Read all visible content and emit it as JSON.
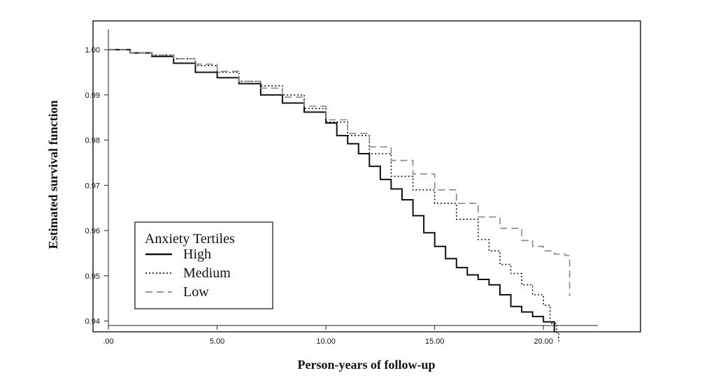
{
  "chart_data": {
    "type": "line",
    "xlabel": "Person-years of follow-up",
    "ylabel": "Estimated survival function",
    "xlim": [
      0,
      22.5
    ],
    "ylim": [
      0.939,
      1.0045
    ],
    "x_ticks": [
      {
        "value": 0,
        "label": ".00"
      },
      {
        "value": 5,
        "label": "5.00"
      },
      {
        "value": 10,
        "label": "10.00"
      },
      {
        "value": 15,
        "label": "15.00"
      },
      {
        "value": 20,
        "label": "20.00"
      }
    ],
    "y_ticks": [
      {
        "value": 1.0,
        "label": "1.00"
      },
      {
        "value": 0.99,
        "label": "0.99"
      },
      {
        "value": 0.98,
        "label": "0.98"
      },
      {
        "value": 0.97,
        "label": "0.97"
      },
      {
        "value": 0.96,
        "label": "0.96"
      },
      {
        "value": 0.95,
        "label": "0.95"
      },
      {
        "value": 0.94,
        "label": "0.94"
      }
    ],
    "legend": {
      "title": "Anxiety Tertiles",
      "placement": "bottom-left"
    },
    "series": [
      {
        "name": "High",
        "style": "solid",
        "color": "#111111",
        "x": [
          0,
          1,
          2,
          3,
          4,
          5,
          6,
          7,
          8,
          9,
          10,
          10.5,
          11,
          11.5,
          12,
          12.5,
          13,
          13.5,
          14,
          14.5,
          15,
          15.5,
          16,
          16.5,
          17,
          17.5,
          18,
          18.5,
          19,
          19.5,
          20,
          20.5,
          20.5
        ],
        "values": [
          1.0,
          0.9993,
          0.9985,
          0.997,
          0.995,
          0.9938,
          0.9925,
          0.99,
          0.9882,
          0.9862,
          0.9838,
          0.981,
          0.9792,
          0.977,
          0.9742,
          0.9713,
          0.9692,
          0.9668,
          0.9633,
          0.9595,
          0.9565,
          0.9538,
          0.9518,
          0.9502,
          0.9492,
          0.948,
          0.9458,
          0.9432,
          0.942,
          0.941,
          0.9398,
          0.9398,
          0.9375
        ]
      },
      {
        "name": "Medium",
        "style": "dotted",
        "color": "#111111",
        "x": [
          0,
          1,
          2,
          3,
          4,
          5,
          6,
          7,
          8,
          9,
          10,
          11,
          12,
          13,
          14,
          15,
          16,
          17,
          17.5,
          18,
          18.5,
          19,
          19.5,
          20,
          20.3,
          20.6,
          20.7
        ],
        "values": [
          1.0,
          0.9993,
          0.9988,
          0.998,
          0.9965,
          0.995,
          0.993,
          0.992,
          0.99,
          0.987,
          0.984,
          0.981,
          0.977,
          0.972,
          0.969,
          0.966,
          0.9625,
          0.958,
          0.9555,
          0.9525,
          0.9505,
          0.948,
          0.9458,
          0.9435,
          0.9395,
          0.9375,
          0.9355
        ]
      },
      {
        "name": "Low",
        "style": "dashed",
        "color": "#888888",
        "x": [
          0,
          1,
          2,
          3,
          4,
          5,
          6,
          7,
          8,
          9,
          10,
          11,
          12,
          13,
          14,
          15,
          16,
          17,
          18,
          19,
          19.5,
          20,
          20.5,
          21,
          21.2
        ],
        "values": [
          1.0,
          0.9993,
          0.9988,
          0.998,
          0.9968,
          0.9952,
          0.993,
          0.9915,
          0.9895,
          0.9875,
          0.9845,
          0.9815,
          0.9785,
          0.9755,
          0.9725,
          0.969,
          0.966,
          0.963,
          0.9605,
          0.9578,
          0.9565,
          0.9555,
          0.9548,
          0.9545,
          0.9455
        ]
      }
    ]
  }
}
